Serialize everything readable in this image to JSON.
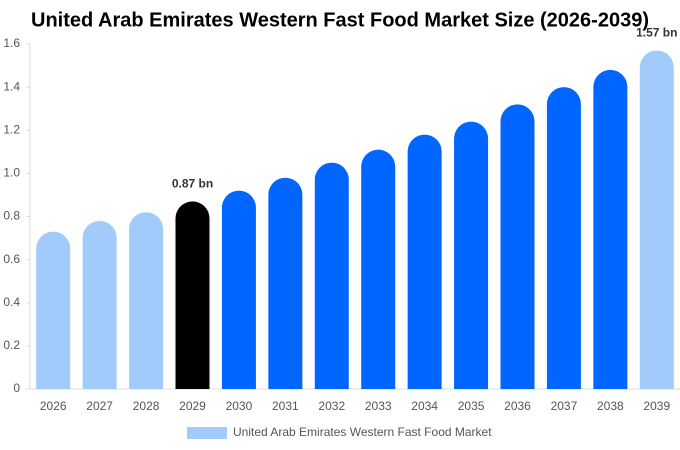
{
  "chart_data": {
    "type": "bar",
    "title": "United Arab Emirates Western Fast Food Market Size (2026-2039)",
    "categories": [
      "2026",
      "2027",
      "2028",
      "2029",
      "2030",
      "2031",
      "2032",
      "2033",
      "2034",
      "2035",
      "2036",
      "2037",
      "2038",
      "2039"
    ],
    "series": [
      {
        "name": "United Arab Emirates Western Fast Food Market",
        "color": "#a0cbfa",
        "values": [
          0.73,
          0.78,
          0.82,
          0.87,
          0.92,
          0.98,
          1.05,
          1.11,
          1.18,
          1.24,
          1.32,
          1.4,
          1.48,
          1.57
        ],
        "colors": [
          "#a0cbfa",
          "#a0cbfa",
          "#a0cbfa",
          "#000000",
          "#0066ff",
          "#0066ff",
          "#0066ff",
          "#0066ff",
          "#0066ff",
          "#0066ff",
          "#0066ff",
          "#0066ff",
          "#0066ff",
          "#a0cbfa"
        ],
        "value_labels": [
          null,
          null,
          null,
          "0.87 bn",
          null,
          null,
          null,
          null,
          null,
          null,
          null,
          null,
          null,
          "1.57 bn"
        ]
      }
    ],
    "ylim": [
      0,
      1.6
    ],
    "yticks": [
      0,
      0.2,
      0.4,
      0.6,
      0.8,
      {
        "value": 1,
        "label": "1.0"
      },
      1.2,
      1.4,
      1.6
    ],
    "grid": false
  }
}
